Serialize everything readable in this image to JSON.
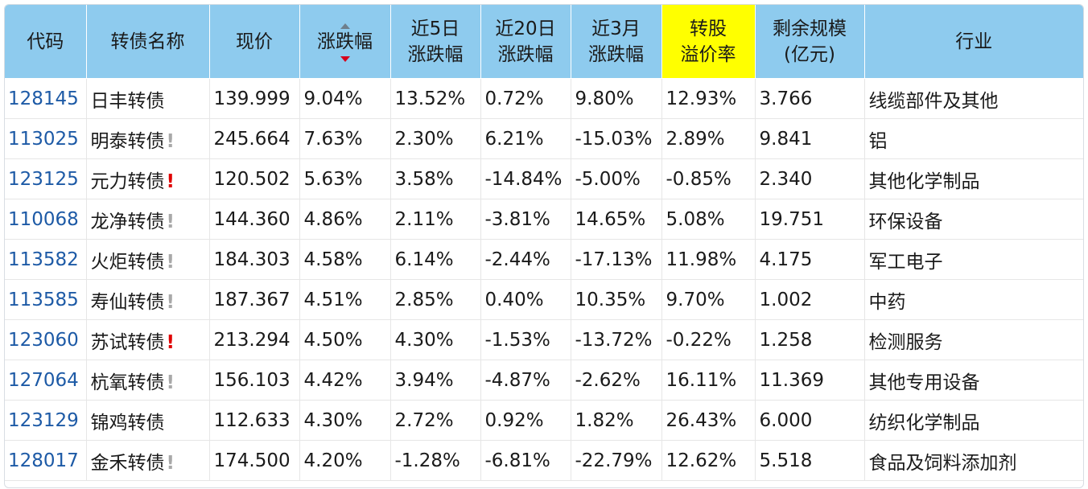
{
  "table": {
    "headers": {
      "code": "代码",
      "name": "转债名称",
      "price": "现价",
      "change": "涨跌幅",
      "chg5d_l1": "近5日",
      "chg5d_l2": "涨跌幅",
      "chg20d_l1": "近20日",
      "chg20d_l2": "涨跌幅",
      "chg3m_l1": "近3月",
      "chg3m_l2": "涨跌幅",
      "premium_l1": "转股",
      "premium_l2": "溢价率",
      "size_l1": "剩余规模",
      "size_l2": "(亿元)",
      "industry": "行业"
    },
    "sort": {
      "column": "涨跌幅",
      "direction": "desc"
    },
    "colors": {
      "header_bg": "#8ecbee",
      "highlight_bg": "#ffff00",
      "up": "#d6001c",
      "down": "#1a8a1a",
      "code": "#1d5aa6"
    },
    "rows": [
      {
        "code": "128145",
        "name": "日丰转债",
        "flag": "",
        "price": "139.999",
        "change": "9.04%",
        "chg5d": "13.52%",
        "chg20d": "0.72%",
        "chg3m": "9.80%",
        "premium": "12.93%",
        "size": "3.766",
        "industry": "线缆部件及其他"
      },
      {
        "code": "113025",
        "name": "明泰转债",
        "flag": "!",
        "flag_color": "gray",
        "price": "245.664",
        "change": "7.63%",
        "chg5d": "2.30%",
        "chg20d": "6.21%",
        "chg3m": "-15.03%",
        "premium": "2.89%",
        "size": "9.841",
        "industry": "铝"
      },
      {
        "code": "123125",
        "name": "元力转债",
        "flag": "!",
        "flag_color": "red",
        "price": "120.502",
        "change": "5.63%",
        "chg5d": "3.58%",
        "chg20d": "-14.84%",
        "chg3m": "-5.00%",
        "premium": "-0.85%",
        "size": "2.340",
        "industry": "其他化学制品"
      },
      {
        "code": "110068",
        "name": "龙净转债",
        "flag": "!",
        "flag_color": "gray",
        "price": "144.360",
        "change": "4.86%",
        "chg5d": "2.11%",
        "chg20d": "-3.81%",
        "chg3m": "14.65%",
        "premium": "5.08%",
        "size": "19.751",
        "industry": "环保设备"
      },
      {
        "code": "113582",
        "name": "火炬转债",
        "flag": "!",
        "flag_color": "gray",
        "price": "184.303",
        "change": "4.58%",
        "chg5d": "6.14%",
        "chg20d": "-2.44%",
        "chg3m": "-17.13%",
        "premium": "11.98%",
        "size": "4.175",
        "industry": "军工电子"
      },
      {
        "code": "113585",
        "name": "寿仙转债",
        "flag": "!",
        "flag_color": "gray",
        "price": "187.367",
        "change": "4.51%",
        "chg5d": "2.85%",
        "chg20d": "0.40%",
        "chg3m": "10.35%",
        "premium": "9.70%",
        "size": "1.002",
        "industry": "中药"
      },
      {
        "code": "123060",
        "name": "苏试转债",
        "flag": "!",
        "flag_color": "red",
        "price": "213.294",
        "change": "4.50%",
        "chg5d": "4.30%",
        "chg20d": "-1.53%",
        "chg3m": "-13.72%",
        "premium": "-0.22%",
        "size": "1.258",
        "industry": "检测服务"
      },
      {
        "code": "127064",
        "name": "杭氧转债",
        "flag": "!",
        "flag_color": "gray",
        "price": "156.103",
        "change": "4.42%",
        "chg5d": "3.94%",
        "chg20d": "-4.87%",
        "chg3m": "-2.62%",
        "premium": "16.11%",
        "size": "11.369",
        "industry": "其他专用设备"
      },
      {
        "code": "123129",
        "name": "锦鸡转债",
        "flag": "",
        "price": "112.633",
        "change": "4.30%",
        "chg5d": "2.72%",
        "chg20d": "0.92%",
        "chg3m": "1.82%",
        "premium": "26.43%",
        "size": "6.000",
        "industry": "纺织化学制品"
      },
      {
        "code": "128017",
        "name": "金禾转债",
        "flag": "!",
        "flag_color": "gray",
        "price": "174.500",
        "change": "4.20%",
        "chg5d": "-1.28%",
        "chg20d": "-6.81%",
        "chg3m": "-22.79%",
        "premium": "12.62%",
        "size": "5.518",
        "industry": "食品及饲料添加剂"
      }
    ]
  }
}
